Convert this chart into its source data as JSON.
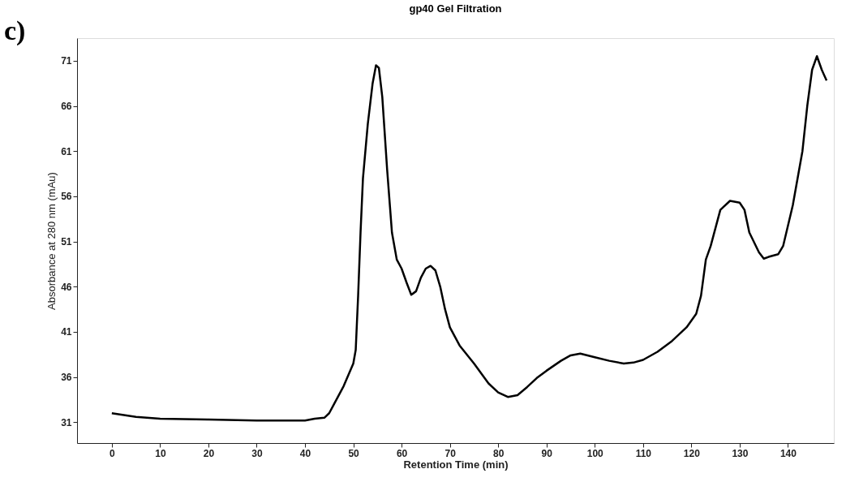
{
  "chart_data": {
    "type": "line",
    "title": "gp40 Gel Filtration",
    "xlabel": "Retention Time (min)",
    "ylabel": "Absorbance at 280 nm (mAu)",
    "annotations": [
      "c)"
    ],
    "x": [
      0,
      5,
      10,
      20,
      30,
      40,
      42,
      44,
      45,
      46,
      48,
      50,
      50.5,
      51,
      51.5,
      52,
      53,
      54,
      54.7,
      55.3,
      56,
      57,
      58,
      59,
      60,
      61,
      62,
      63,
      64,
      65,
      66,
      67,
      68,
      69,
      70,
      72,
      75,
      78,
      80,
      82,
      84,
      86,
      88,
      90,
      93,
      95,
      97,
      100,
      103,
      106,
      108,
      110,
      113,
      116,
      119,
      121,
      122,
      123,
      124,
      125,
      126,
      128,
      130,
      131,
      132,
      134,
      135,
      136,
      138,
      139,
      141,
      143,
      144,
      145,
      146,
      147,
      148
    ],
    "series": [
      {
        "color": "#000000",
        "values": [
          32.0,
          31.6,
          31.4,
          31.3,
          31.2,
          31.2,
          31.4,
          31.5,
          32.0,
          33.0,
          35.0,
          37.5,
          39.0,
          45.0,
          52.0,
          58.0,
          64.0,
          68.5,
          70.5,
          70.2,
          67.0,
          59.0,
          52.0,
          49.0,
          48.0,
          46.5,
          45.1,
          45.5,
          47.0,
          48.0,
          48.3,
          47.8,
          46.0,
          43.5,
          41.5,
          39.5,
          37.5,
          35.3,
          34.3,
          33.8,
          34.0,
          34.9,
          35.9,
          36.7,
          37.8,
          38.4,
          38.6,
          38.2,
          37.8,
          37.5,
          37.6,
          37.9,
          38.8,
          40.0,
          41.5,
          43.0,
          45.0,
          49.0,
          50.5,
          52.5,
          54.5,
          55.5,
          55.3,
          54.5,
          52.0,
          49.8,
          49.1,
          49.3,
          49.6,
          50.5,
          55.0,
          61.0,
          66.0,
          70.0,
          71.5,
          70.0,
          68.8
        ]
      }
    ],
    "xlim": [
      -7.2,
      149.5
    ],
    "ylim": [
      28.7,
      73.5
    ],
    "xticks": [
      0,
      10,
      20,
      30,
      40,
      50,
      60,
      70,
      80,
      90,
      100,
      110,
      120,
      130,
      140
    ],
    "yticks": [
      31,
      36,
      41,
      46,
      51,
      56,
      61,
      66,
      71
    ],
    "grid": false,
    "legend": false,
    "marker": "none",
    "line_style": "solid"
  }
}
